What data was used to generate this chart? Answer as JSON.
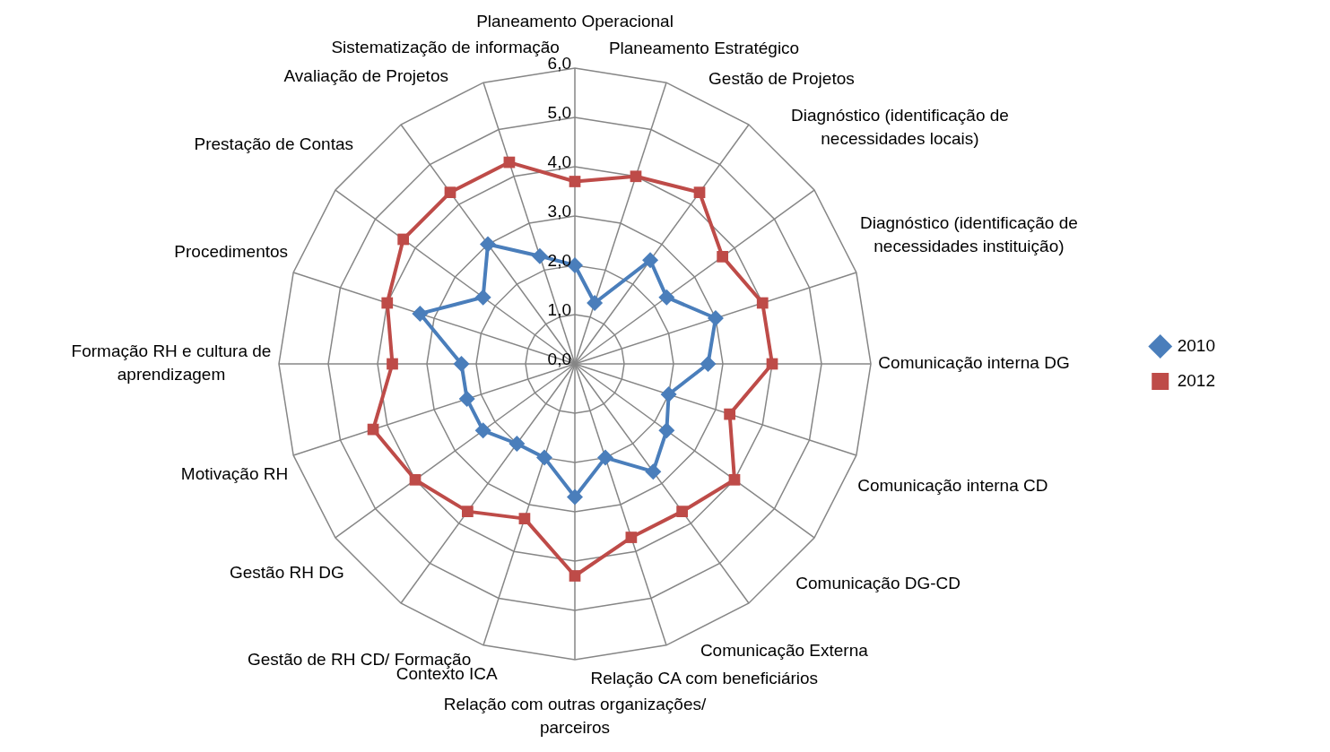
{
  "chart_data": {
    "type": "radar",
    "categories": [
      "Planeamento Operacional",
      "Planeamento Estratégico",
      "Gestão de Projetos",
      "Diagnóstico (identificação de\nnecessidades locais)",
      "Diagnóstico (identificação de\nnecessidades instituição)",
      "Comunicação interna DG",
      "Comunicação interna CD",
      "Comunicação DG-CD",
      "Comunicação Externa",
      "Relação CA com beneficiários",
      "Relação com outras organizações/\nparceiros",
      "Contexto ICA",
      "Gestão de RH CD/ Formação",
      "Gestão RH DG",
      "Motivação RH",
      "Formação RH e cultura de\naprendizagem",
      "Procedimentos",
      "Prestação de Contas",
      "Avaliação de Projetos",
      "Sistematização de informação"
    ],
    "series": [
      {
        "name": "2010",
        "color": "#4a7ebb",
        "marker": "diamond",
        "values": [
          2.0,
          1.3,
          2.6,
          2.3,
          3.0,
          2.7,
          2.0,
          2.3,
          2.7,
          2.0,
          2.7,
          2.0,
          2.0,
          2.3,
          2.3,
          2.3,
          3.3,
          2.3,
          3.0,
          2.3
        ]
      },
      {
        "name": "2012",
        "color": "#be4b48",
        "marker": "square",
        "values": [
          3.7,
          4.0,
          4.3,
          3.7,
          4.0,
          4.0,
          3.3,
          4.0,
          3.7,
          3.7,
          4.3,
          3.3,
          3.7,
          4.0,
          4.3,
          3.7,
          4.0,
          4.3,
          4.3,
          4.3
        ]
      }
    ],
    "ylim": [
      0,
      6
    ],
    "yticks": [
      {
        "value": 0,
        "label": "0,0"
      },
      {
        "value": 1,
        "label": "1,0"
      },
      {
        "value": 2,
        "label": "2,0"
      },
      {
        "value": 3,
        "label": "3,0"
      },
      {
        "value": 4,
        "label": "4,0"
      },
      {
        "value": 5,
        "label": "5,0"
      },
      {
        "value": 6,
        "label": "6,0"
      }
    ],
    "grid": true,
    "legend": "right",
    "line_style": "solid"
  }
}
